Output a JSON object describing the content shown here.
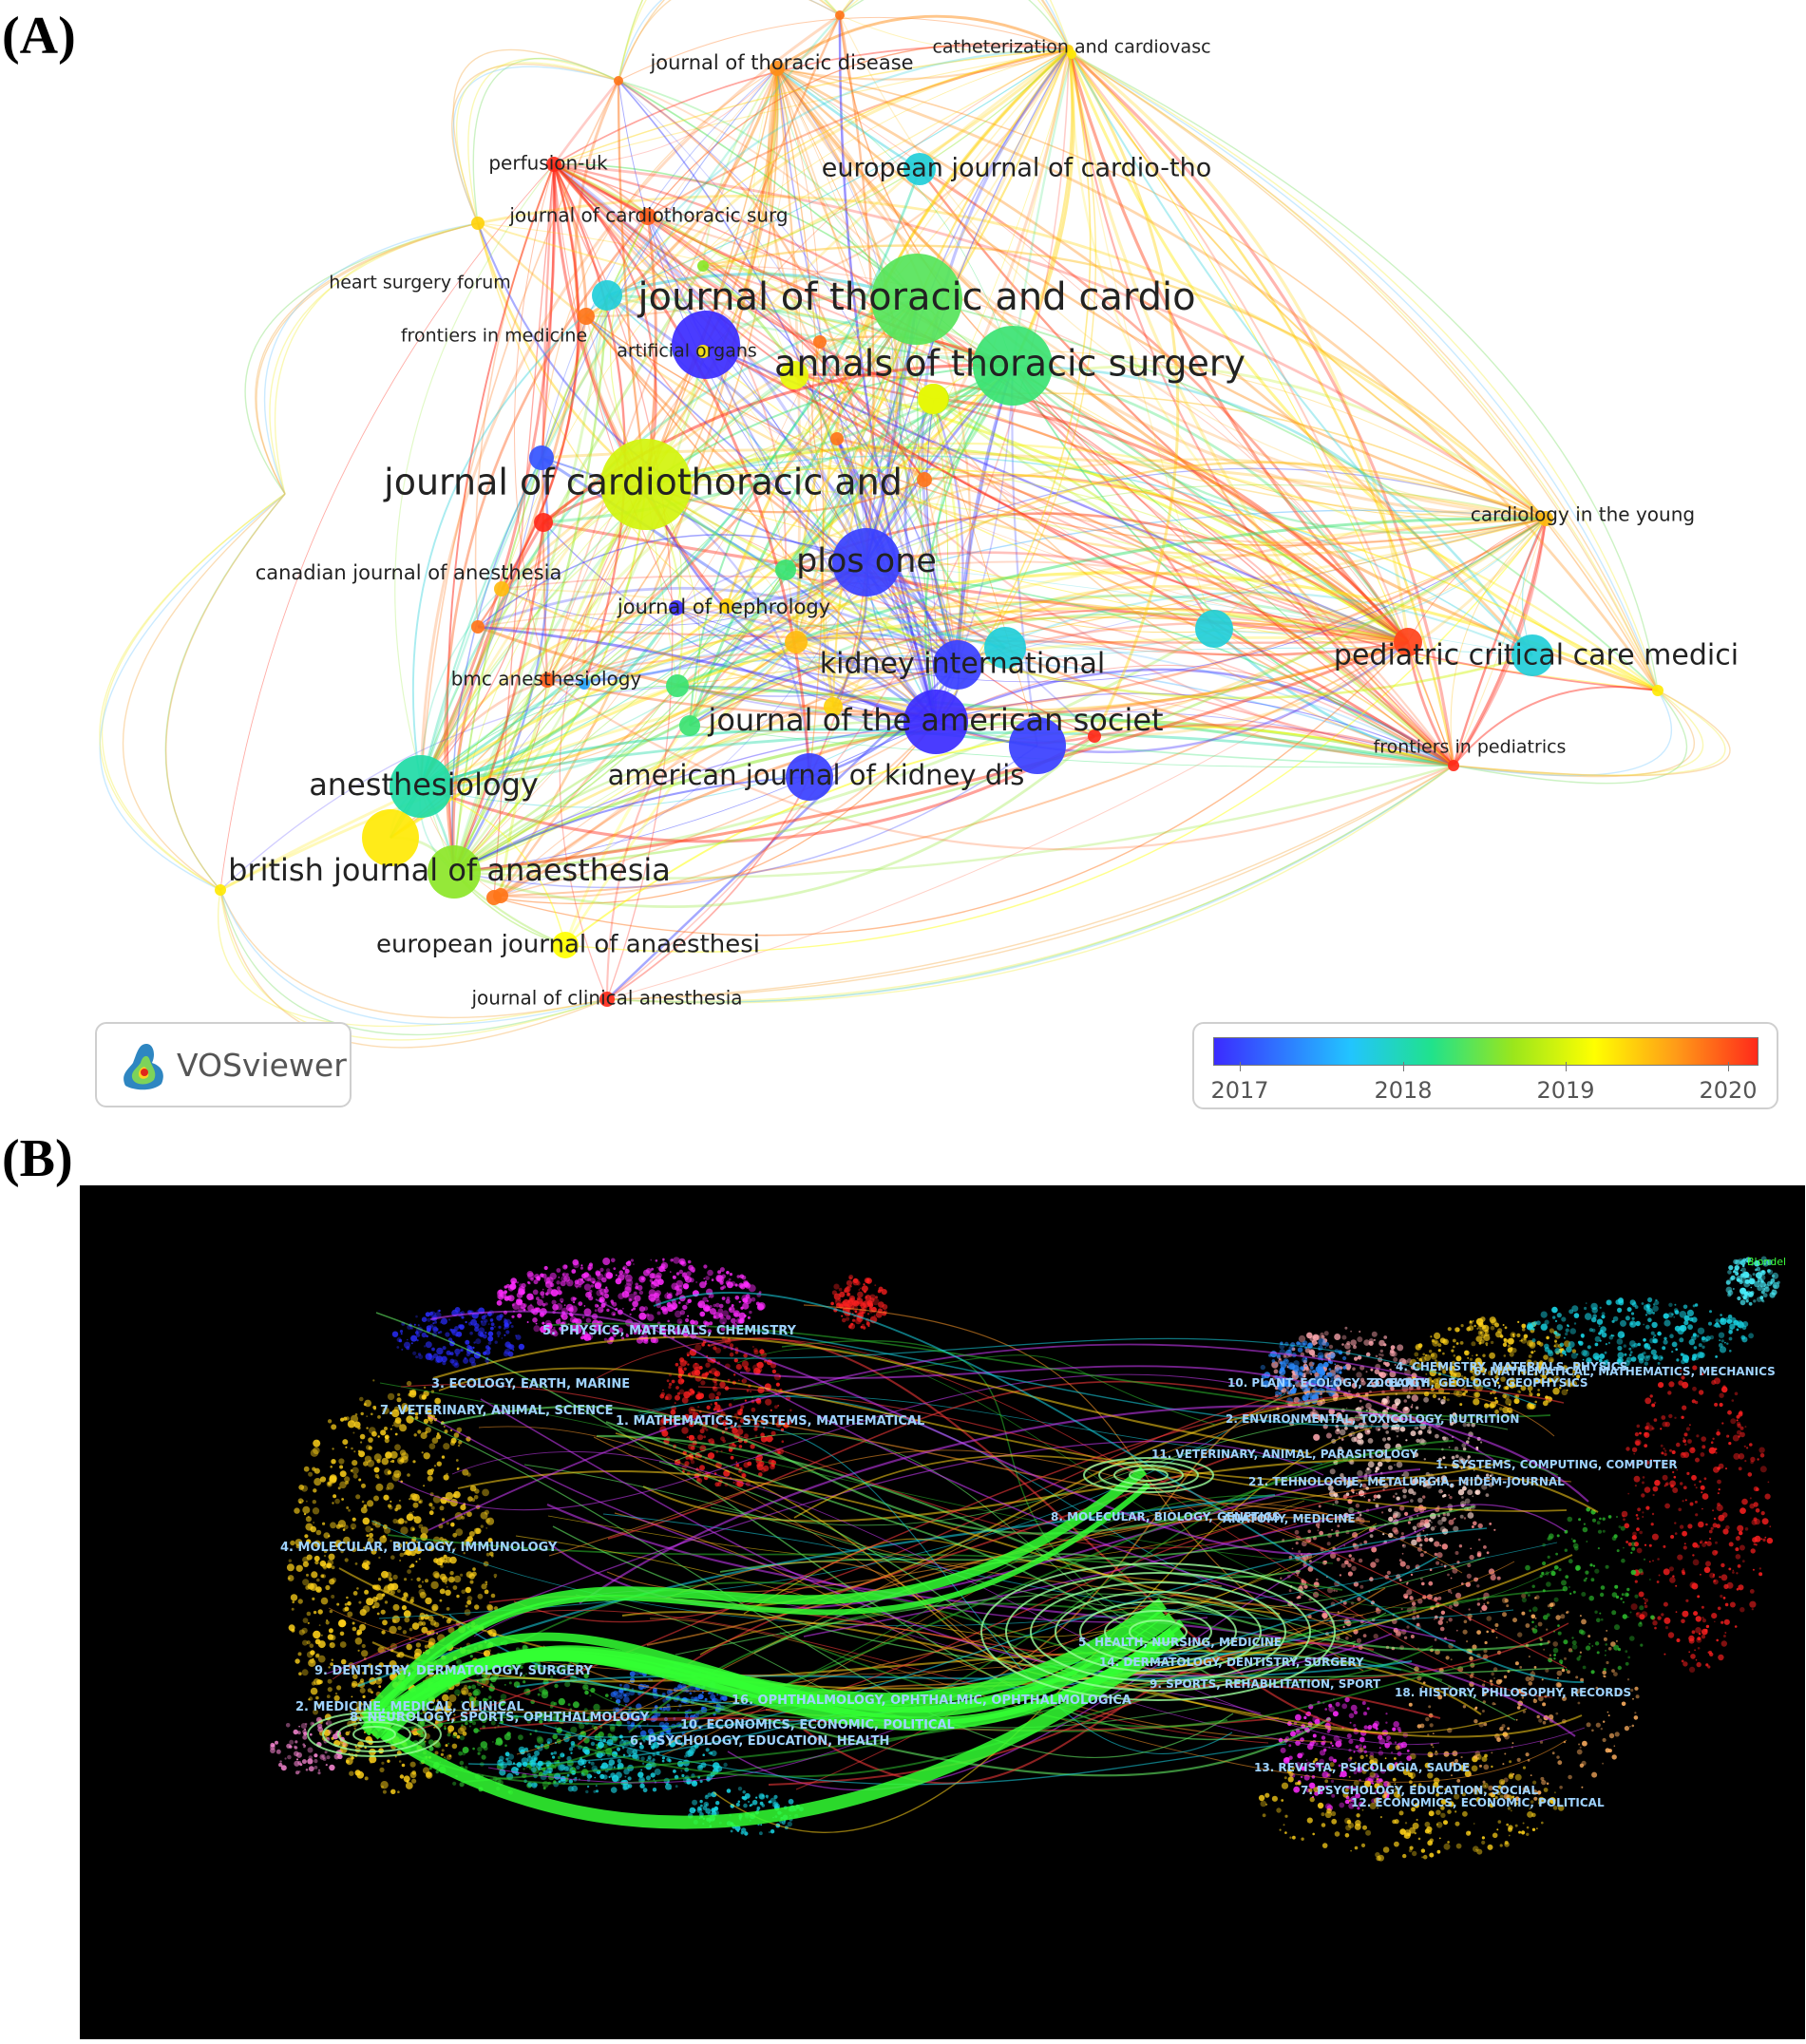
{
  "panel_labels": {
    "a": "(A)",
    "b": "(B)"
  },
  "panel_a": {
    "tool": "VOSviewer",
    "legend": {
      "ticks": [
        "2017",
        "2018",
        "2019",
        "2020"
      ]
    },
    "nodes": [
      {
        "label": "journal of thoracic disease",
        "year": 2019.6
      },
      {
        "label": "catheterization and cardiovasc",
        "year": 2019.3
      },
      {
        "label": "perfusion-uk",
        "year": 2020.0
      },
      {
        "label": "european journal of cardio-tho",
        "year": 2017.9
      },
      {
        "label": "journal of cardiothoracic surg",
        "year": 2019.8
      },
      {
        "label": "heart surgery forum",
        "year": 2019.3
      },
      {
        "label": "frontiers in medicine",
        "year": 2019.7
      },
      {
        "label": "artificial organs",
        "year": 2019.2
      },
      {
        "label": "journal of thoracic and cardio",
        "year": 2018.4
      },
      {
        "label": "annals of thoracic surgery",
        "year": 2018.3
      },
      {
        "label": "journal of cardiothoracic and",
        "year": 2018.9
      },
      {
        "label": "plos one",
        "year": 2017.1
      },
      {
        "label": "canadian journal of anesthesia",
        "year": 2019.4
      },
      {
        "label": "journal of nephrology",
        "year": 2019.3
      },
      {
        "label": "kidney international",
        "year": 2017.1
      },
      {
        "label": "bmc anesthesiology",
        "year": 2019.8
      },
      {
        "label": "journal of the american societ",
        "year": 2017.0
      },
      {
        "label": "american journal of kidney dis",
        "year": 2017.1
      },
      {
        "label": "anesthesiology",
        "year": 2018.1
      },
      {
        "label": "british journal of anaesthesia",
        "year": 2018.6
      },
      {
        "label": "european journal of anaesthesi",
        "year": 2019.1
      },
      {
        "label": "journal of clinical anesthesia",
        "year": 2020.0
      },
      {
        "label": "cardiology in the young",
        "year": 2019.4
      },
      {
        "label": "pediatric critical care medici",
        "year": 2019.9
      },
      {
        "label": "frontiers in pediatrics",
        "year": 2020.0
      }
    ]
  },
  "panel_b": {
    "algorithm_label": "Blondel",
    "left_clusters": [
      "5. PHYSICS, MATERIALS, CHEMISTRY",
      "3. ECOLOGY, EARTH, MARINE",
      "7. VETERINARY, ANIMAL, SCIENCE",
      "1. MATHEMATICS, SYSTEMS, MATHEMATICAL",
      "4. MOLECULAR, BIOLOGY, IMMUNOLOGY",
      "9. DENTISTRY, DERMATOLOGY, SURGERY",
      "2. MEDICINE, MEDICAL, CLINICAL",
      "8. NEUROLOGY, SPORTS, OPHTHALMOLOGY",
      "16. OPHTHALMOLOGY, OPHTHALMIC, OPHTHALMOLOGICA",
      "10. ECONOMICS, ECONOMIC, POLITICAL",
      "6. PSYCHOLOGY, EDUCATION, HEALTH"
    ],
    "right_clusters": [
      "4. CHEMISTRY, MATERIALS, PHYSICS",
      "6. MATHEMATICAL, MATHEMATICS, MECHANICS",
      "10. PLANT, ECOLOGY, ZOOLOGY",
      "3. EARTH, GEOLOGY, GEOPHYSICS",
      "2. ENVIRONMENTAL, TOXICOLOGY, NUTRITION",
      "11. VETERINARY, ANIMAL, PARASITOLOGY",
      "21. TEHNOLOGIJE, METALURGIA, MIDEM-JOURNAL",
      "1. SYSTEMS, COMPUTING, COMPUTER",
      "8. MOLECULAR, BIOLOGY, GENETICS",
      "ANATOMY, MEDICINE",
      "5. HEALTH, NURSING, MEDICINE",
      "14. DERMATOLOGY, DENTISTRY, SURGERY",
      "9. SPORTS, REHABILITATION, SPORT",
      "18. HISTORY, PHILOSOPHY, RECORDS",
      "13. REVISTA, PSICOLOGIA, SAUDE",
      "7. PSYCHOLOGY, EDUCATION, SOCIAL",
      "12. ECONOMICS, ECONOMIC, POLITICAL"
    ]
  }
}
